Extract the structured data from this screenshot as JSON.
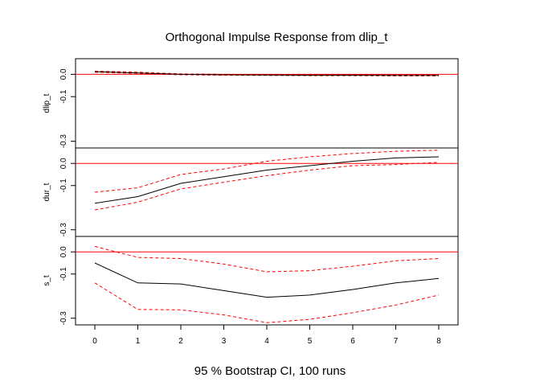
{
  "chart_data": {
    "type": "line",
    "title": "Orthogonal Impulse Response from dlip_t",
    "xlabel": "95 % Bootstrap CI,  100 runs",
    "x": [
      0,
      1,
      2,
      3,
      4,
      5,
      6,
      7,
      8
    ],
    "x_ticks": [
      "0",
      "1",
      "2",
      "3",
      "4",
      "5",
      "6",
      "7",
      "8"
    ],
    "xlim": [
      0,
      8
    ],
    "ylim": [
      -0.33,
      0.07
    ],
    "y_ticks": [
      {
        "value": 0.0,
        "label": "0.0"
      },
      {
        "value": -0.1,
        "label": "-0.1"
      },
      {
        "value": -0.3,
        "label": "-0.3"
      }
    ],
    "zero_line": 0,
    "colors": {
      "response": "#000000",
      "ci": "#ff0000",
      "zero": "#ff0000",
      "frame": "#000000"
    },
    "panels": [
      {
        "name": "dlip_t",
        "response": [
          0.012,
          0.006,
          0.0,
          -0.002,
          -0.003,
          -0.004,
          -0.004,
          -0.005,
          -0.005
        ],
        "lower": [
          0.01,
          0.004,
          -0.002,
          -0.004,
          -0.005,
          -0.006,
          -0.006,
          -0.007,
          -0.007
        ],
        "upper": [
          0.014,
          0.01,
          0.002,
          0.0,
          -0.001,
          -0.002,
          -0.002,
          -0.003,
          -0.003
        ]
      },
      {
        "name": "dur_t",
        "response": [
          -0.18,
          -0.15,
          -0.09,
          -0.06,
          -0.03,
          -0.01,
          0.01,
          0.025,
          0.03
        ],
        "lower": [
          -0.21,
          -0.175,
          -0.115,
          -0.085,
          -0.055,
          -0.03,
          -0.01,
          -0.005,
          0.005
        ],
        "upper": [
          -0.13,
          -0.11,
          -0.05,
          -0.025,
          0.01,
          0.03,
          0.045,
          0.055,
          0.06
        ]
      },
      {
        "name": "s_t",
        "response": [
          -0.05,
          -0.14,
          -0.145,
          -0.175,
          -0.205,
          -0.195,
          -0.17,
          -0.14,
          -0.12
        ],
        "lower": [
          -0.14,
          -0.26,
          -0.262,
          -0.285,
          -0.32,
          -0.305,
          -0.275,
          -0.24,
          -0.195
        ],
        "upper": [
          0.025,
          -0.025,
          -0.03,
          -0.055,
          -0.09,
          -0.085,
          -0.065,
          -0.04,
          -0.03
        ]
      }
    ]
  }
}
